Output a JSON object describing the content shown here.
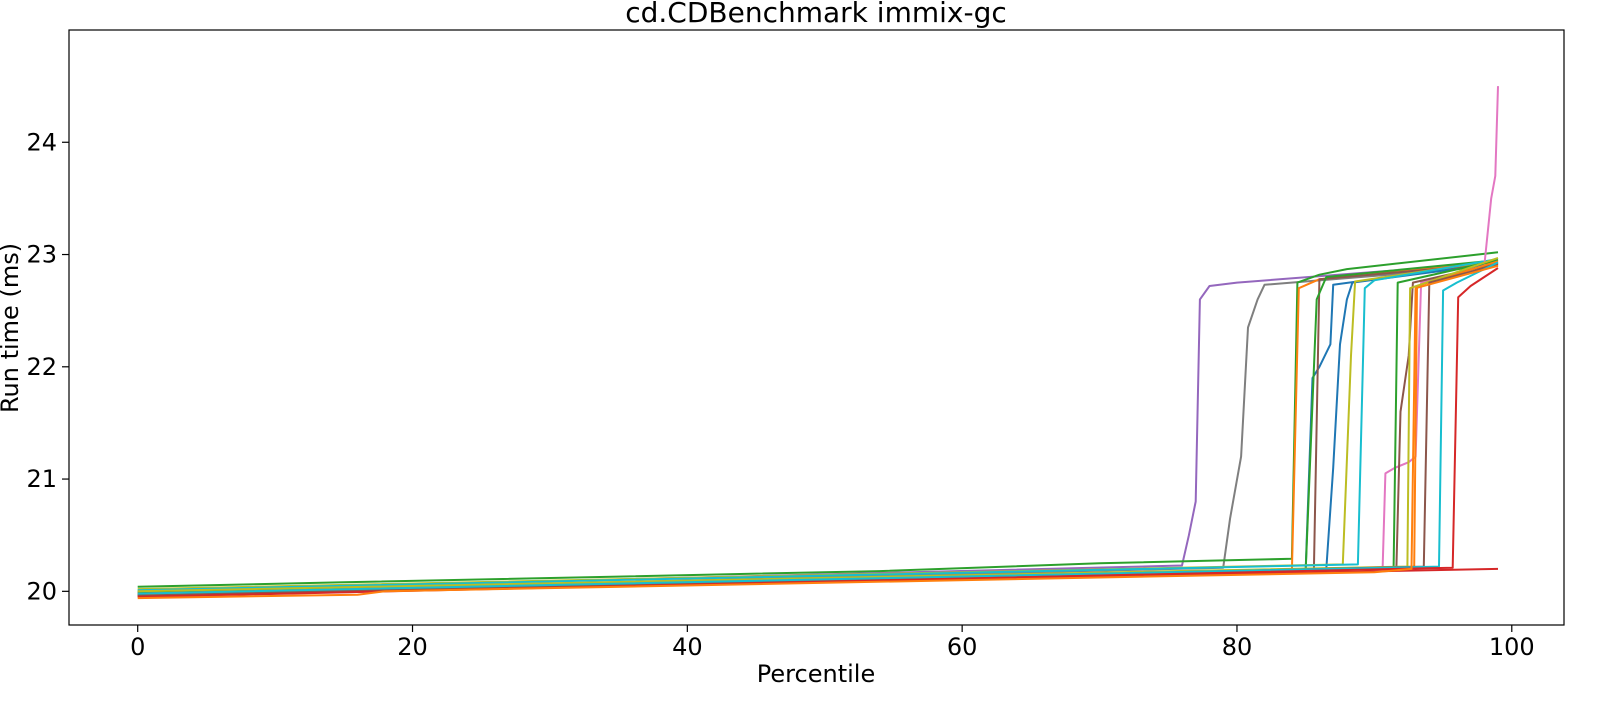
{
  "chart_data": {
    "type": "line",
    "title": "cd.CDBenchmark immix-gc",
    "xlabel": "Percentile",
    "ylabel": "Run time (ms)",
    "xlim": [
      -5,
      103.8
    ],
    "ylim": [
      19.7,
      25.0
    ],
    "xticks": [
      0,
      20,
      40,
      60,
      80,
      100
    ],
    "yticks": [
      20,
      21,
      22,
      23,
      24
    ],
    "grid": false,
    "legend": "none",
    "series": [
      {
        "color": "#9467bd",
        "points": [
          [
            0,
            20.0
          ],
          [
            76,
            20.23
          ],
          [
            76.5,
            20.5
          ],
          [
            77,
            20.8
          ],
          [
            77.3,
            22.6
          ],
          [
            78,
            22.72
          ],
          [
            80,
            22.75
          ],
          [
            99,
            22.93
          ]
        ]
      },
      {
        "color": "#7f7f7f",
        "points": [
          [
            0,
            19.98
          ],
          [
            79,
            20.21
          ],
          [
            79.5,
            20.65
          ],
          [
            80.3,
            21.2
          ],
          [
            80.8,
            22.35
          ],
          [
            81.5,
            22.6
          ],
          [
            82,
            22.73
          ],
          [
            99,
            22.9
          ]
        ]
      },
      {
        "color": "#2ca02c",
        "points": [
          [
            0,
            20.04
          ],
          [
            15,
            20.08
          ],
          [
            54,
            20.18
          ],
          [
            70,
            20.25
          ],
          [
            84,
            20.29
          ],
          [
            84.4,
            22.75
          ],
          [
            86,
            22.82
          ],
          [
            88,
            22.87
          ],
          [
            99,
            23.02
          ]
        ]
      },
      {
        "color": "#ff7f0e",
        "points": [
          [
            0,
            19.96
          ],
          [
            84,
            20.18
          ],
          [
            84.5,
            22.7
          ],
          [
            86,
            22.78
          ],
          [
            99,
            22.93
          ]
        ]
      },
      {
        "color": "#d62728",
        "points": [
          [
            0,
            19.96
          ],
          [
            99,
            20.2
          ]
        ]
      },
      {
        "color": "#1f77b4",
        "points": [
          [
            0,
            19.99
          ],
          [
            85,
            20.2
          ],
          [
            85.5,
            21.9
          ],
          [
            86,
            22.0
          ],
          [
            86.8,
            22.2
          ],
          [
            87,
            22.73
          ],
          [
            99,
            22.93
          ]
        ]
      },
      {
        "color": "#8c564b",
        "points": [
          [
            0,
            19.97
          ],
          [
            85.6,
            20.19
          ],
          [
            86,
            22.78
          ],
          [
            99,
            22.92
          ]
        ]
      },
      {
        "color": "#2ca02c",
        "points": [
          [
            0,
            19.98
          ],
          [
            85,
            20.19
          ],
          [
            85.8,
            22.6
          ],
          [
            86.5,
            22.8
          ],
          [
            99,
            22.95
          ]
        ]
      },
      {
        "color": "#1f77b4",
        "points": [
          [
            0,
            19.97
          ],
          [
            86.5,
            20.2
          ],
          [
            87,
            21.1
          ],
          [
            87.5,
            22.2
          ],
          [
            88,
            22.6
          ],
          [
            88.4,
            22.75
          ],
          [
            99,
            22.92
          ]
        ]
      },
      {
        "color": "#bcbd22",
        "points": [
          [
            0,
            20.02
          ],
          [
            87.7,
            20.24
          ],
          [
            88.3,
            22.1
          ],
          [
            88.6,
            22.76
          ],
          [
            99,
            22.95
          ]
        ]
      },
      {
        "color": "#17becf",
        "points": [
          [
            0,
            20.01
          ],
          [
            88.8,
            20.24
          ],
          [
            89.3,
            22.7
          ],
          [
            90,
            22.77
          ],
          [
            99,
            22.96
          ]
        ]
      },
      {
        "color": "#e377c2",
        "points": [
          [
            0,
            19.99
          ],
          [
            90.6,
            20.2
          ],
          [
            90.8,
            21.05
          ],
          [
            91.5,
            21.1
          ],
          [
            92.5,
            21.15
          ],
          [
            93,
            21.2
          ],
          [
            93.4,
            22.75
          ],
          [
            98,
            22.9
          ],
          [
            98.5,
            23.5
          ],
          [
            98.8,
            23.7
          ],
          [
            99,
            24.5
          ]
        ]
      },
      {
        "color": "#2ca02c",
        "points": [
          [
            0,
            19.99
          ],
          [
            91.4,
            20.21
          ],
          [
            91.7,
            22.75
          ],
          [
            99,
            22.95
          ]
        ]
      },
      {
        "color": "#8c564b",
        "points": [
          [
            0,
            19.98
          ],
          [
            91.6,
            20.21
          ],
          [
            91.9,
            21.6
          ],
          [
            92.5,
            22.1
          ],
          [
            92.8,
            22.75
          ],
          [
            99,
            22.92
          ]
        ]
      },
      {
        "color": "#ff7f0e",
        "points": [
          [
            0,
            19.98
          ],
          [
            92.9,
            20.22
          ],
          [
            93.1,
            22.72
          ],
          [
            99,
            22.94
          ]
        ]
      },
      {
        "color": "#bcbd22",
        "points": [
          [
            0,
            20.0
          ],
          [
            92.4,
            20.22
          ],
          [
            92.6,
            22.7
          ],
          [
            99,
            22.97
          ]
        ]
      },
      {
        "color": "#8c564b",
        "points": [
          [
            0,
            19.96
          ],
          [
            93.6,
            20.22
          ],
          [
            94,
            22.75
          ],
          [
            99,
            22.91
          ]
        ]
      },
      {
        "color": "#17becf",
        "points": [
          [
            0,
            19.98
          ],
          [
            94.7,
            20.22
          ],
          [
            95,
            22.68
          ],
          [
            96,
            22.75
          ],
          [
            99,
            22.93
          ]
        ]
      },
      {
        "color": "#d62728",
        "points": [
          [
            0,
            19.95
          ],
          [
            95.7,
            20.21
          ],
          [
            96.1,
            22.62
          ],
          [
            97,
            22.72
          ],
          [
            99,
            22.88
          ]
        ]
      },
      {
        "color": "#ff7f0e",
        "points": [
          [
            0,
            19.94
          ],
          [
            16,
            19.97
          ],
          [
            18,
            20.0
          ],
          [
            90,
            20.17
          ],
          [
            92.7,
            20.2
          ],
          [
            93,
            22.7
          ],
          [
            99,
            22.9
          ]
        ]
      }
    ]
  }
}
